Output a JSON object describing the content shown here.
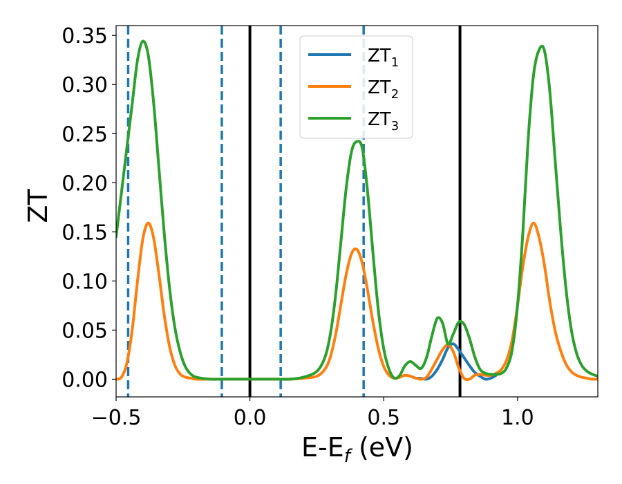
{
  "chart_data": {
    "type": "line",
    "title": "",
    "xlabel": "E-E",
    "xlabel_sub": "f",
    "xlabel_unit": " (eV)",
    "ylabel": "ZT",
    "xlim": [
      -0.5,
      1.3
    ],
    "ylim": [
      -0.018,
      0.36
    ],
    "grid": false,
    "legend_position": "top-center",
    "x_ticks": [
      -0.5,
      0.0,
      0.5,
      1.0
    ],
    "x_tick_labels": [
      "−0.5",
      "0.0",
      "0.5",
      "1.0"
    ],
    "y_ticks": [
      0.0,
      0.05,
      0.1,
      0.15,
      0.2,
      0.25,
      0.3,
      0.35
    ],
    "y_tick_labels": [
      "0.00",
      "0.05",
      "0.10",
      "0.15",
      "0.20",
      "0.25",
      "0.30",
      "0.35"
    ],
    "series": [
      {
        "name": "ZT",
        "subscript": "1",
        "color": "#1f77b4",
        "x": [
          0.62,
          0.64,
          0.66,
          0.68,
          0.7,
          0.72,
          0.74,
          0.76,
          0.78,
          0.8,
          0.82,
          0.84,
          0.86,
          0.88,
          0.9,
          0.92
        ],
        "y": [
          0.001,
          0.0008,
          0.0,
          0.003,
          0.01,
          0.02,
          0.032,
          0.036,
          0.03,
          0.022,
          0.014,
          0.007,
          0.003,
          0.0,
          0.001,
          0.004
        ]
      },
      {
        "name": "ZT",
        "subscript": "2",
        "color": "#ff7f0e",
        "x": [
          -0.5,
          -0.48,
          -0.46,
          -0.44,
          -0.42,
          -0.4,
          -0.38,
          -0.36,
          -0.34,
          -0.32,
          -0.3,
          -0.28,
          -0.26,
          -0.24,
          -0.22,
          -0.2,
          -0.15,
          -0.1,
          0.0,
          0.1,
          0.15,
          0.2,
          0.25,
          0.28,
          0.3,
          0.32,
          0.34,
          0.36,
          0.38,
          0.4,
          0.42,
          0.44,
          0.46,
          0.48,
          0.5,
          0.52,
          0.54,
          0.56,
          0.58,
          0.6,
          0.62,
          0.64,
          0.66,
          0.68,
          0.7,
          0.72,
          0.74,
          0.76,
          0.78,
          0.8,
          0.82,
          0.84,
          0.86,
          0.88,
          0.9,
          0.92,
          0.94,
          0.96,
          0.98,
          1.0,
          1.02,
          1.04,
          1.06,
          1.08,
          1.1,
          1.12,
          1.14,
          1.16,
          1.18,
          1.2,
          1.22,
          1.24,
          1.26,
          1.28,
          1.3
        ],
        "y": [
          0.0,
          0.002,
          0.016,
          0.05,
          0.1,
          0.143,
          0.159,
          0.144,
          0.107,
          0.065,
          0.033,
          0.014,
          0.005,
          0.002,
          0.001,
          0.0,
          0.0,
          0.0,
          0.0,
          0.0,
          0.0,
          0.001,
          0.003,
          0.01,
          0.022,
          0.045,
          0.076,
          0.107,
          0.128,
          0.132,
          0.118,
          0.09,
          0.058,
          0.031,
          0.013,
          0.004,
          0.001,
          0.002,
          0.004,
          0.003,
          0.001,
          0.0,
          0.002,
          0.0105,
          0.0205,
          0.03,
          0.035,
          0.028,
          0.012,
          0.001,
          0.0,
          0.004,
          0.005,
          0.004,
          0.004,
          0.006,
          0.01,
          0.02,
          0.04,
          0.075,
          0.115,
          0.145,
          0.159,
          0.145,
          0.117,
          0.08,
          0.05,
          0.03,
          0.016,
          0.008,
          0.004,
          0.002,
          0.001,
          0.0,
          0.0
        ]
      },
      {
        "name": "ZT",
        "subscript": "3",
        "color": "#2ca02c",
        "x": [
          -0.5,
          -0.48,
          -0.46,
          -0.44,
          -0.42,
          -0.4,
          -0.38,
          -0.36,
          -0.34,
          -0.32,
          -0.3,
          -0.28,
          -0.26,
          -0.24,
          -0.22,
          -0.2,
          -0.15,
          -0.1,
          0.0,
          0.1,
          0.15,
          0.2,
          0.25,
          0.28,
          0.3,
          0.32,
          0.34,
          0.36,
          0.38,
          0.4,
          0.42,
          0.44,
          0.46,
          0.48,
          0.5,
          0.52,
          0.54,
          0.56,
          0.58,
          0.6,
          0.62,
          0.64,
          0.66,
          0.68,
          0.7,
          0.72,
          0.74,
          0.76,
          0.78,
          0.8,
          0.82,
          0.84,
          0.86,
          0.88,
          0.9,
          0.92,
          0.94,
          0.96,
          0.98,
          1.0,
          1.02,
          1.04,
          1.06,
          1.08,
          1.1,
          1.12,
          1.14,
          1.16,
          1.18,
          1.2,
          1.22,
          1.24,
          1.26,
          1.28,
          1.3
        ],
        "y": [
          0.145,
          0.19,
          0.235,
          0.28,
          0.325,
          0.344,
          0.33,
          0.282,
          0.215,
          0.148,
          0.092,
          0.052,
          0.027,
          0.012,
          0.005,
          0.002,
          0.0,
          0.0,
          0.0,
          0.0,
          0.0,
          0.002,
          0.008,
          0.022,
          0.045,
          0.085,
          0.14,
          0.195,
          0.232,
          0.242,
          0.235,
          0.19,
          0.128,
          0.07,
          0.031,
          0.01,
          0.001,
          0.004,
          0.014,
          0.018,
          0.014,
          0.011,
          0.022,
          0.044,
          0.062,
          0.057,
          0.036,
          0.046,
          0.058,
          0.056,
          0.042,
          0.023,
          0.01,
          0.006,
          0.005,
          0.005,
          0.006,
          0.012,
          0.03,
          0.075,
          0.15,
          0.245,
          0.31,
          0.335,
          0.335,
          0.295,
          0.225,
          0.155,
          0.095,
          0.052,
          0.027,
          0.014,
          0.008,
          0.005,
          0.003
        ]
      }
    ],
    "vertical_lines": [
      {
        "x": -0.455,
        "style": "dashed",
        "color": "#1f77b4"
      },
      {
        "x": -0.105,
        "style": "dashed",
        "color": "#1f77b4"
      },
      {
        "x": 0.0,
        "style": "solid",
        "color": "#000000"
      },
      {
        "x": 0.115,
        "style": "dashed",
        "color": "#1f77b4"
      },
      {
        "x": 0.425,
        "style": "dashed",
        "color": "#1f77b4"
      },
      {
        "x": 0.785,
        "style": "solid",
        "color": "#000000"
      }
    ]
  }
}
